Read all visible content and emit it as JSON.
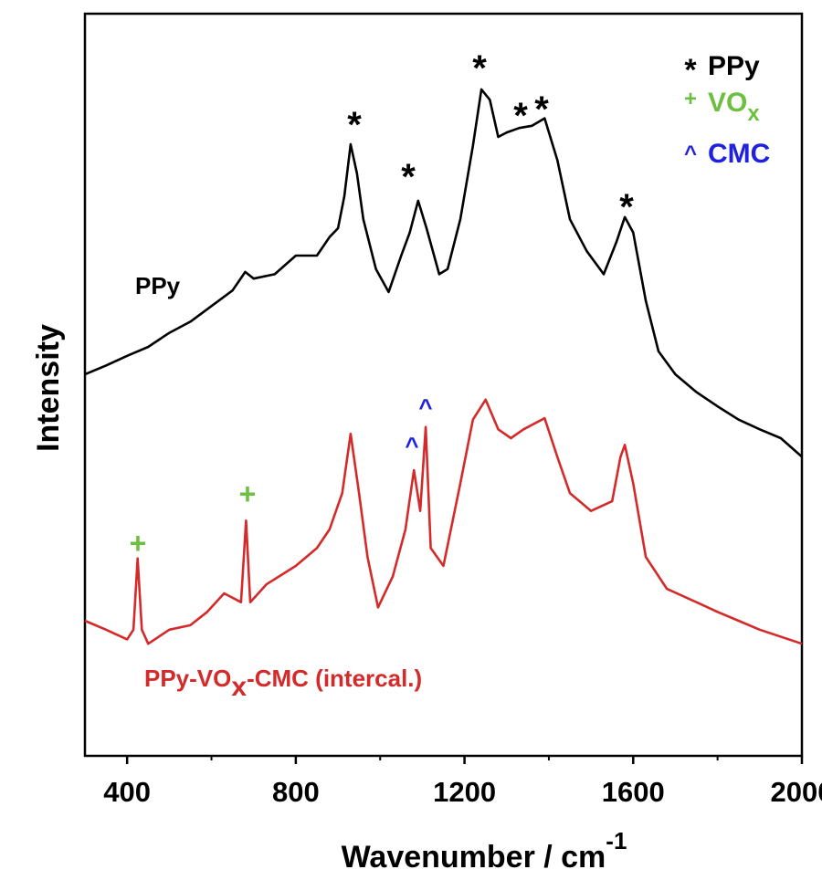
{
  "chart_data": {
    "type": "line",
    "x_label": {
      "text": "Wavenumber / cm",
      "superscript": "-1"
    },
    "y_label": "Intensity",
    "xlim": [
      300,
      2000
    ],
    "xticks": [
      400,
      800,
      1200,
      1600,
      2000
    ],
    "xminor": [
      600,
      1000,
      1400,
      1800
    ],
    "ylim": [
      0,
      100
    ],
    "series": [
      {
        "name_parts": [
          "PPy"
        ],
        "color": "#000000",
        "x": [
          300,
          350,
          400,
          450,
          500,
          550,
          600,
          650,
          680,
          700,
          750,
          800,
          850,
          880,
          900,
          915,
          930,
          945,
          960,
          990,
          1020,
          1050,
          1070,
          1090,
          1110,
          1140,
          1160,
          1190,
          1220,
          1240,
          1260,
          1280,
          1300,
          1330,
          1360,
          1390,
          1420,
          1450,
          1490,
          1530,
          1560,
          1580,
          1600,
          1630,
          1660,
          1700,
          1750,
          1800,
          1850,
          1900,
          1950,
          2000
        ],
        "values": [
          51.4,
          52.6,
          53.9,
          55.1,
          57,
          58.5,
          60.6,
          62.7,
          65.2,
          64.3,
          64.9,
          67.4,
          67.4,
          69.9,
          71.1,
          75.4,
          82.4,
          78.5,
          72.3,
          65.6,
          62.5,
          67.4,
          70.5,
          74.8,
          71.1,
          64.9,
          65.6,
          72.3,
          82.2,
          89.8,
          88.4,
          83.4,
          84,
          84.6,
          84.9,
          85.9,
          80.3,
          72.3,
          68,
          64.9,
          69.2,
          72.6,
          70.5,
          61.3,
          54.5,
          51.4,
          49,
          47.1,
          45.3,
          44,
          42.8,
          40.3
        ]
      },
      {
        "name_parts": [
          "PPy-VO",
          "x",
          "-CMC (intercal.)"
        ],
        "color": "#d42a2a",
        "x": [
          300,
          350,
          400,
          415,
          425,
          435,
          450,
          500,
          550,
          590,
          630,
          670,
          682,
          692,
          730,
          800,
          850,
          880,
          910,
          930,
          950,
          970,
          995,
          1030,
          1060,
          1080,
          1095,
          1108,
          1120,
          1150,
          1190,
          1220,
          1250,
          1280,
          1310,
          1340,
          1390,
          1420,
          1450,
          1500,
          1550,
          1570,
          1580,
          1600,
          1630,
          1680,
          1750,
          1800,
          1850,
          1900,
          2000
        ],
        "values": [
          18.2,
          17,
          15.7,
          17,
          26.6,
          17,
          15.1,
          17,
          17.6,
          19.4,
          21.9,
          20.7,
          31.7,
          20.7,
          23.1,
          25.6,
          28,
          30.5,
          35.4,
          43.4,
          35.4,
          26.8,
          20,
          24.2,
          30.5,
          38.5,
          33,
          44.3,
          28,
          25.6,
          36.7,
          45.3,
          48,
          44,
          42.8,
          44,
          45.5,
          40.3,
          35.4,
          33,
          34.3,
          40.3,
          41.9,
          36.7,
          26.8,
          22.5,
          20.7,
          19.4,
          18.2,
          17,
          15.1
        ]
      }
    ],
    "annotations": [
      {
        "text": "*",
        "color": "#000000"
      },
      {
        "text": "*",
        "color": "#000000"
      },
      {
        "text": "*",
        "color": "#000000"
      },
      {
        "text": "*",
        "color": "#000000"
      },
      {
        "text": "*",
        "color": "#000000"
      },
      {
        "text": "*",
        "color": "#000000"
      },
      {
        "text": "+",
        "color": "#6cbf3f"
      },
      {
        "text": "+",
        "color": "#6cbf3f"
      },
      {
        "text": "^",
        "color": "#2020e0"
      },
      {
        "text": "^",
        "color": "#2020e0"
      }
    ],
    "legend": [
      {
        "symbol": "*",
        "label_parts": [
          "PPy"
        ],
        "color": "#000000"
      },
      {
        "symbol": "+",
        "label_parts": [
          "VO",
          "x"
        ],
        "color": "#6cbf3f"
      },
      {
        "symbol": "^",
        "label_parts": [
          "CMC"
        ],
        "color": "#2020e0"
      }
    ]
  }
}
